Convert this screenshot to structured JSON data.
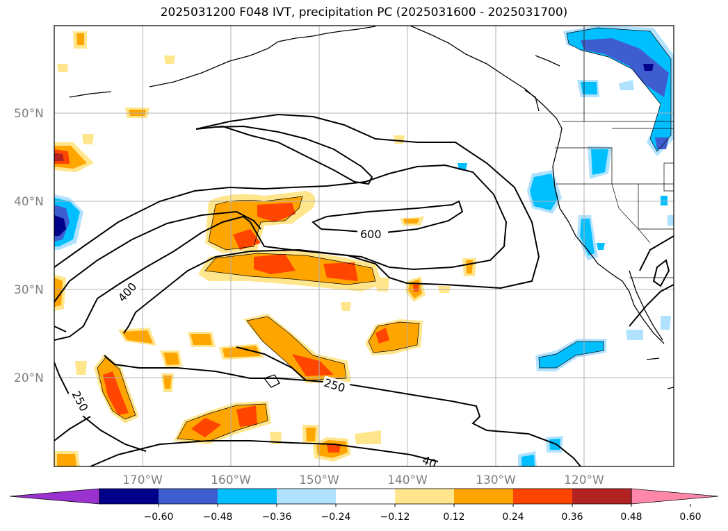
{
  "title": "2025031200 F048 IVT, precipitation PC (2025031600 - 2025031700)",
  "lat_labels": [
    "50°N",
    "40°N",
    "30°N",
    "20°N"
  ],
  "lon_labels": [
    "170°W",
    "160°W",
    "150°W",
    "140°W",
    "130°W",
    "120°W"
  ],
  "colorbar": {
    "ticks": [
      "−0.60",
      "−0.48",
      "−0.36",
      "−0.24",
      "−0.12",
      "0.12",
      "0.24",
      "0.36",
      "0.48",
      "0.60"
    ],
    "colors": [
      "#9b32cf",
      "#00008b",
      "#3e5ed0",
      "#00bfff",
      "#b0e2ff",
      "#ffffff",
      "#ffe68c",
      "#ffa500",
      "#ff4500",
      "#b22222",
      "#ff88aa"
    ]
  },
  "contour_labels": [
    "600",
    "400",
    "250",
    "250",
    "40"
  ],
  "palette": {
    "pos_low": "#ffe68c",
    "pos_mid": "#ffa500",
    "pos_high": "#ff4500",
    "pos_max": "#b22222",
    "neg_low": "#b0e2ff",
    "neg_mid": "#00bfff",
    "neg_high": "#3e5ed0",
    "neg_max": "#00008b"
  }
}
